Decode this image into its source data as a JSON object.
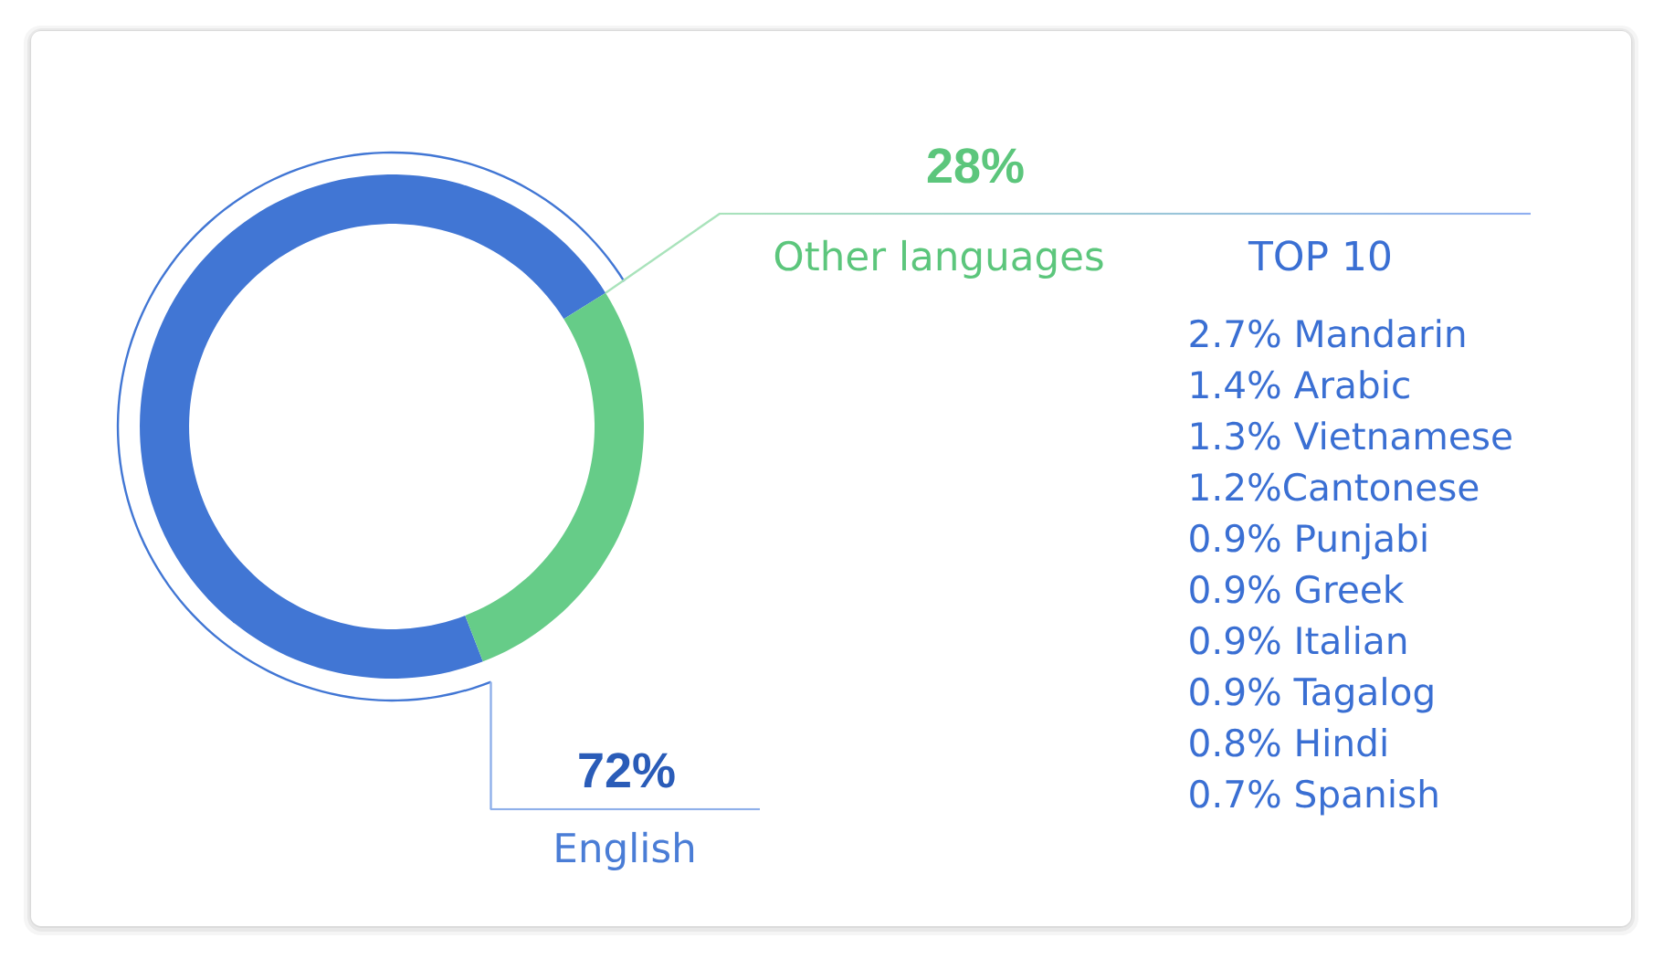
{
  "chart_data": {
    "type": "donut",
    "categories": [
      "English",
      "Other languages"
    ],
    "values": [
      72,
      28
    ],
    "colors": [
      "#4176d4",
      "#66cc88"
    ],
    "value_labels": [
      "72%",
      "28%"
    ],
    "annotations": [
      "TOP 10",
      "2.7% Mandarin",
      "1.4% Arabic",
      "1.3% Vietnamese",
      "1.2%Cantonese",
      "0.9% Punjabi",
      "0.9% Greek",
      "0.9% Italian",
      "0.9% Tagalog",
      "0.8% Hindi",
      "0.7% Spanish"
    ]
  }
}
